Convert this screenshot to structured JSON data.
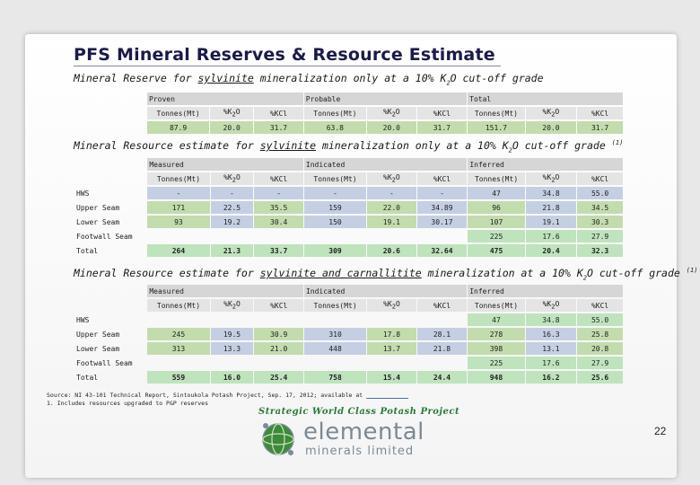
{
  "title": "PFS Mineral Reserves & Resource Estimate",
  "subtitle1": {
    "pre": "Mineral Reserve for ",
    "u": "sylvinite",
    "post": " mineralization only at a 10% K",
    "sub": "2",
    "post2": "O cut-off grade"
  },
  "subtitle2": {
    "pre": "Mineral Resource estimate for ",
    "u": "sylvinite",
    "post": " mineralization only at a 10% K",
    "sub": "2",
    "post2": "O cut-off grade ",
    "sup": "(1)"
  },
  "subtitle3": {
    "pre": "Mineral Resource estimate for ",
    "u": "sylvinite and carnallitite",
    "post": " mineralization at a 10% K",
    "sub": "2",
    "post2": "O cut-off grade ",
    "sup": "(1)"
  },
  "table1": {
    "groups": [
      "Proven",
      "Probable",
      "Total"
    ],
    "columns": [
      "Tonnes(Mt)",
      "%K2O",
      "%KCl"
    ],
    "row": [
      "87.9",
      "20.0",
      "31.7",
      "63.8",
      "20.0",
      "31.7",
      "151.7",
      "20.0",
      "31.7"
    ]
  },
  "table2": {
    "groups": [
      "Measured",
      "Indicated",
      "Inferred"
    ],
    "columns": [
      "Tonnes(Mt)",
      "%K2O",
      "%KCl"
    ],
    "rows": [
      {
        "label": "HWS",
        "cells": [
          "-",
          "-",
          "-",
          "-",
          "-",
          "-",
          "47",
          "34.8",
          "55.0"
        ]
      },
      {
        "label": "Upper Seam",
        "cells": [
          "171",
          "22.5",
          "35.5",
          "159",
          "22.0",
          "34.89",
          "96",
          "21.8",
          "34.5"
        ]
      },
      {
        "label": "Lower Seam",
        "cells": [
          "93",
          "19.2",
          "30.4",
          "150",
          "19.1",
          "30.17",
          "107",
          "19.1",
          "30.3"
        ]
      },
      {
        "label": "Footwall Seam",
        "cells": [
          "",
          "",
          "",
          "",
          "",
          "",
          "225",
          "17.6",
          "27.9"
        ]
      },
      {
        "label": "Total",
        "cells": [
          "264",
          "21.3",
          "33.7",
          "309",
          "20.6",
          "32.64",
          "475",
          "20.4",
          "32.3"
        ]
      }
    ]
  },
  "table3": {
    "groups": [
      "Measured",
      "Indicated",
      "Inferred"
    ],
    "columns": [
      "Tonnes(Mt)",
      "%K2O",
      "%KCl"
    ],
    "rows": [
      {
        "label": "HWS",
        "cells": [
          "",
          "",
          "",
          "",
          "",
          "",
          "47",
          "34.8",
          "55.0"
        ]
      },
      {
        "label": "Upper Seam",
        "cells": [
          "245",
          "19.5",
          "30.9",
          "310",
          "17.8",
          "28.1",
          "278",
          "16.3",
          "25.8"
        ]
      },
      {
        "label": "Lower Seam",
        "cells": [
          "313",
          "13.3",
          "21.0",
          "448",
          "13.7",
          "21.8",
          "398",
          "13.1",
          "20.8"
        ]
      },
      {
        "label": "Footwall Seam",
        "cells": [
          "",
          "",
          "",
          "",
          "",
          "",
          "225",
          "17.6",
          "27.9"
        ]
      },
      {
        "label": "Total",
        "cells": [
          "559",
          "16.0",
          "25.4",
          "758",
          "15.4",
          "24.4",
          "948",
          "16.2",
          "25.6"
        ]
      }
    ]
  },
  "source_line": "Source: NI 43-101 Technical Report, Sintoukola Potash Project, Sep. 17, 2012; available at",
  "footnote": "1. Includes resources upgraded to P&P reserves",
  "tagline": "Strategic World Class Potash Project",
  "logo": {
    "line1": "elemental",
    "line2": "minerals limited"
  },
  "page_number": "22",
  "colors": {
    "title": "#1a1a4a",
    "green_cell": "#c3dcae",
    "blue_cell": "#c5cfe3",
    "logo_gray": "#7a8a96"
  }
}
